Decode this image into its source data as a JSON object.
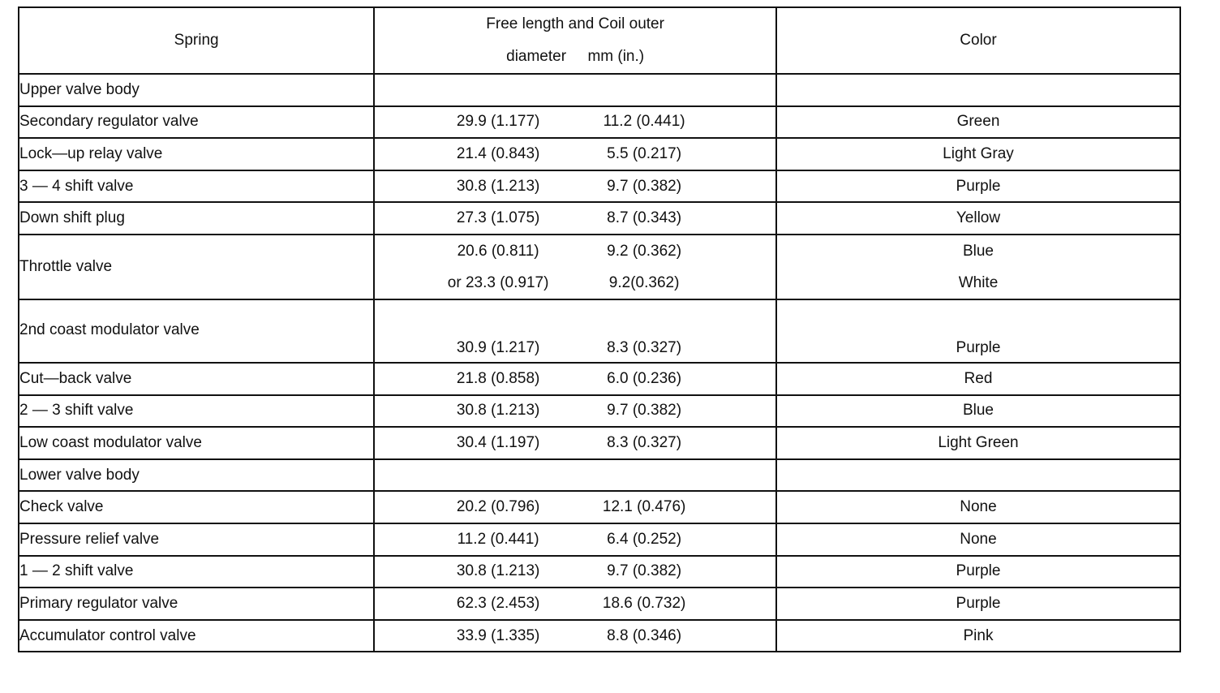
{
  "header": {
    "spring": "Spring",
    "dims_line1": "Free length and Coil outer",
    "dims_line2": "diameter",
    "dims_unit": "mm (in.)",
    "color": "Color"
  },
  "sections": [
    {
      "title": "Upper valve body",
      "rows": [
        {
          "name": "Secondary regulator valve",
          "entries": [
            {
              "free": "29.9 (1.177)",
              "coil": "11.2 (0.441)",
              "color": "Green"
            }
          ]
        },
        {
          "name": "Lock—up relay valve",
          "entries": [
            {
              "free": "21.4 (0.843)",
              "coil": "5.5 (0.217)",
              "color": "Light Gray"
            }
          ]
        },
        {
          "name": "3 — 4 shift valve",
          "entries": [
            {
              "free": "30.8 (1.213)",
              "coil": "9.7 (0.382)",
              "color": "Purple"
            }
          ]
        },
        {
          "name": "Down shift plug",
          "entries": [
            {
              "free": "27.3 (1.075)",
              "coil": "8.7 (0.343)",
              "color": "Yellow"
            }
          ]
        },
        {
          "name": "Throttle valve",
          "entries": [
            {
              "free": "20.6 (0.811)",
              "coil": "9.2 (0.362)",
              "color": "Blue"
            },
            {
              "free": "or 23.3 (0.917)",
              "coil": "9.2(0.362)",
              "color": "White"
            }
          ]
        },
        {
          "name": "2nd coast modulator valve",
          "entries": [
            {
              "free": "30.9 (1.217)",
              "coil": "8.3 (0.327)",
              "color": "Purple"
            }
          ],
          "tall": true
        },
        {
          "name": "Cut—back valve",
          "entries": [
            {
              "free": "21.8 (0.858)",
              "coil": "6.0 (0.236)",
              "color": "Red"
            }
          ]
        },
        {
          "name": "2 — 3 shift valve",
          "entries": [
            {
              "free": "30.8 (1.213)",
              "coil": "9.7 (0.382)",
              "color": "Blue"
            }
          ]
        },
        {
          "name": "Low coast modulator valve",
          "entries": [
            {
              "free": "30.4 (1.197)",
              "coil": "8.3 (0.327)",
              "color": "Light Green"
            }
          ]
        }
      ]
    },
    {
      "title": "Lower valve body",
      "rows": [
        {
          "name": "Check valve",
          "entries": [
            {
              "free": "20.2 (0.796)",
              "coil": "12.1 (0.476)",
              "color": "None"
            }
          ]
        },
        {
          "name": "Pressure relief valve",
          "entries": [
            {
              "free": "11.2 (0.441)",
              "coil": "6.4 (0.252)",
              "color": "None"
            }
          ]
        },
        {
          "name": "1 — 2 shift valve",
          "entries": [
            {
              "free": "30.8 (1.213)",
              "coil": "9.7 (0.382)",
              "color": "Purple"
            }
          ]
        },
        {
          "name": "Primary regulator valve",
          "entries": [
            {
              "free": "62.3 (2.453)",
              "coil": "18.6 (0.732)",
              "color": "Purple"
            }
          ]
        },
        {
          "name": "Accumulator control valve",
          "entries": [
            {
              "free": "33.9 (1.335)",
              "coil": "8.8 (0.346)",
              "color": "Pink"
            }
          ]
        }
      ]
    }
  ]
}
